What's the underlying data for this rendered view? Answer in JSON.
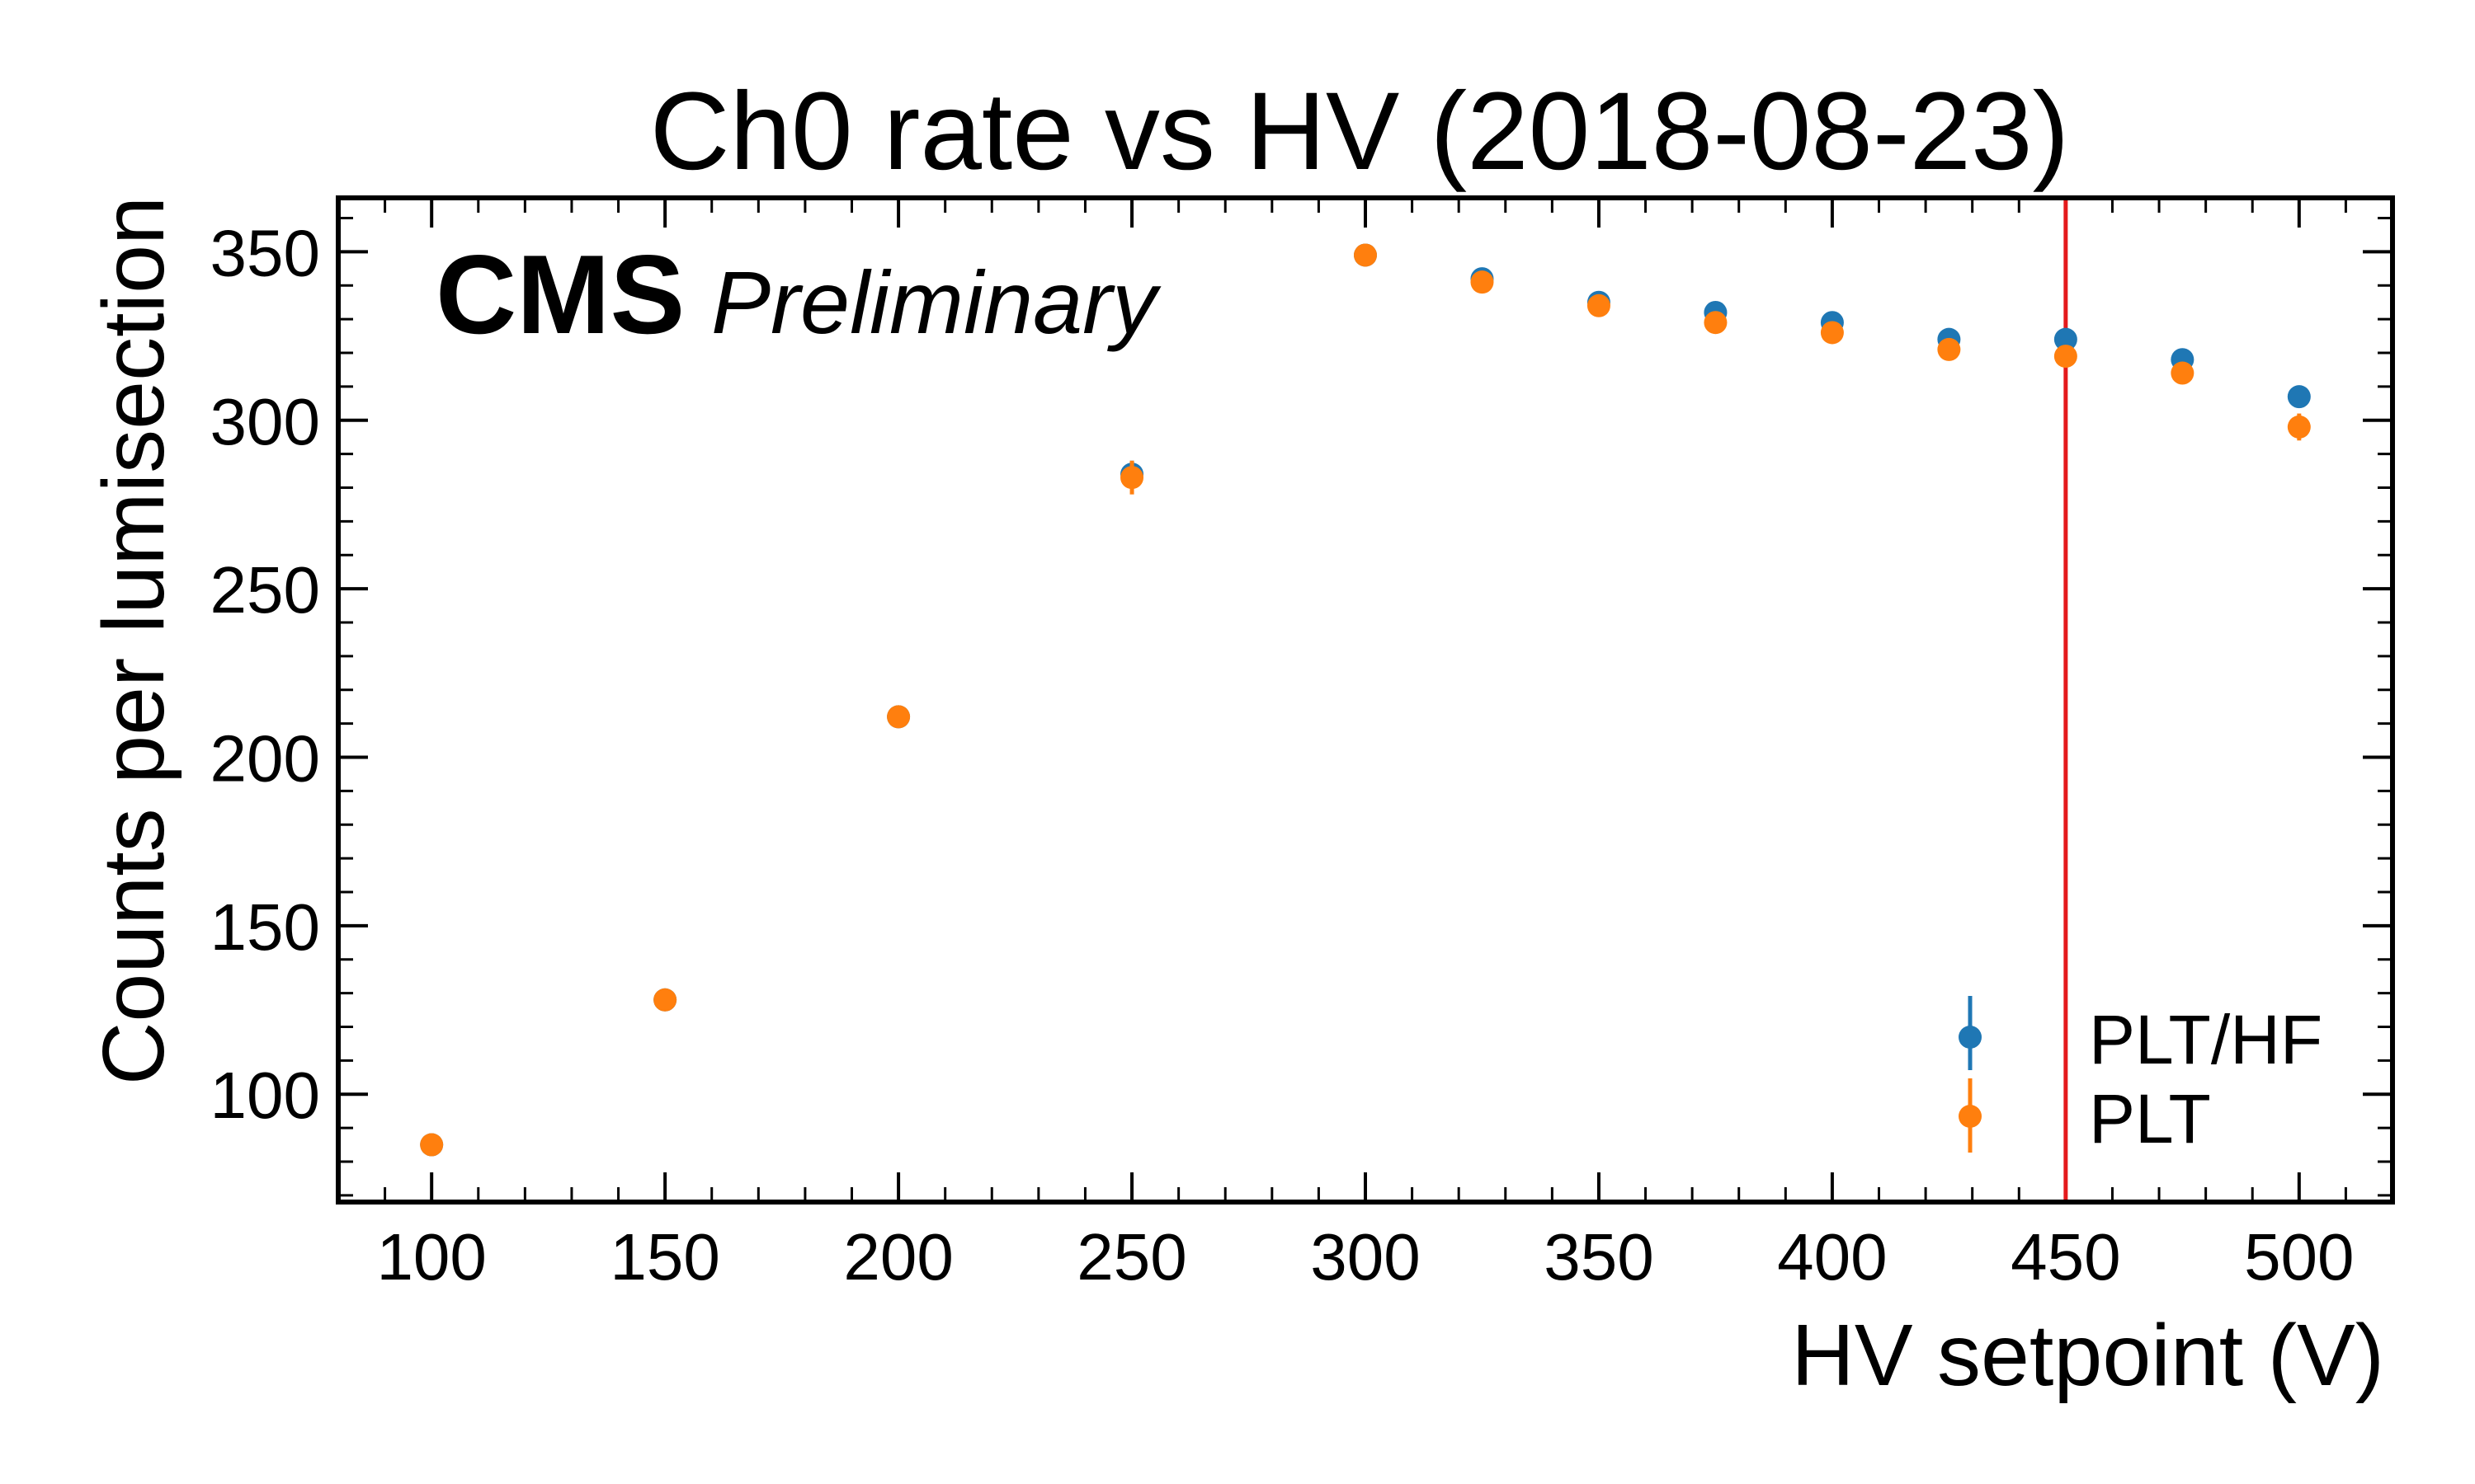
{
  "chart_data": {
    "type": "scatter",
    "title": "Ch0 rate vs HV (2018-08-23)",
    "xlabel": "HV setpoint (V)",
    "ylabel": "Counts per lumisection",
    "xlim": [
      80,
      520
    ],
    "ylim": [
      68,
      366
    ],
    "x_ticks": [
      100,
      150,
      200,
      250,
      300,
      350,
      400,
      450,
      500
    ],
    "y_ticks": [
      100,
      150,
      200,
      250,
      300,
      350
    ],
    "grid": false,
    "legend_position": "bottom-right",
    "experiment_label": "CMS",
    "status_label": "Preliminary",
    "reference_line": {
      "x": 450,
      "color": "#e41a1c"
    },
    "series": [
      {
        "name": "PLT/HF",
        "color": "#1f77b4",
        "points": [
          {
            "x": 100,
            "y": 85,
            "err": 1
          },
          {
            "x": 150,
            "y": 128,
            "err": 1
          },
          {
            "x": 200,
            "y": 212,
            "err": 1
          },
          {
            "x": 250,
            "y": 284,
            "err": 4
          },
          {
            "x": 300,
            "y": 349,
            "err": 1
          },
          {
            "x": 325,
            "y": 342,
            "err": 1
          },
          {
            "x": 350,
            "y": 335,
            "err": 1
          },
          {
            "x": 375,
            "y": 332,
            "err": 1
          },
          {
            "x": 400,
            "y": 329,
            "err": 1
          },
          {
            "x": 425,
            "y": 324,
            "err": 1
          },
          {
            "x": 450,
            "y": 324,
            "err": 1
          },
          {
            "x": 475,
            "y": 318,
            "err": 1
          },
          {
            "x": 500,
            "y": 307,
            "err": 1
          }
        ]
      },
      {
        "name": "PLT",
        "color": "#ff7f0e",
        "points": [
          {
            "x": 100,
            "y": 85,
            "err": 1
          },
          {
            "x": 150,
            "y": 128,
            "err": 1
          },
          {
            "x": 200,
            "y": 212,
            "err": 1
          },
          {
            "x": 250,
            "y": 283,
            "err": 5
          },
          {
            "x": 300,
            "y": 349,
            "err": 1
          },
          {
            "x": 325,
            "y": 341,
            "err": 1
          },
          {
            "x": 350,
            "y": 334,
            "err": 1
          },
          {
            "x": 375,
            "y": 329,
            "err": 1
          },
          {
            "x": 400,
            "y": 326,
            "err": 1
          },
          {
            "x": 425,
            "y": 321,
            "err": 1
          },
          {
            "x": 450,
            "y": 319,
            "err": 1
          },
          {
            "x": 475,
            "y": 314,
            "err": 1
          },
          {
            "x": 500,
            "y": 298,
            "err": 4
          }
        ]
      }
    ]
  }
}
